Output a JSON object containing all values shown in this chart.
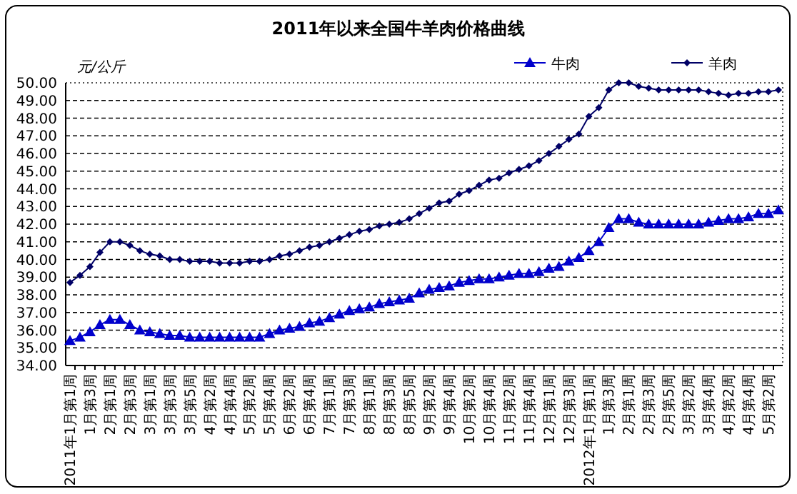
{
  "chart_data": {
    "type": "line",
    "title": "2011年以来全国牛羊肉价格曲线",
    "ylabel": "元/公斤",
    "categories": [
      "2011年1月第1周",
      null,
      "1月第3周",
      null,
      "2月第1周",
      null,
      "2月第3周",
      null,
      "3月第1周",
      null,
      "3月第3周",
      null,
      "3月第5周",
      null,
      "4月第2周",
      null,
      "4月第4周",
      null,
      "5月第2周",
      null,
      "5月第4周",
      null,
      "6月第2周",
      null,
      "6月第4周",
      null,
      "7月第1周",
      null,
      "7月第3周",
      null,
      "8月第1周",
      null,
      "8月第3周",
      null,
      "8月第5周",
      null,
      "9月第2周",
      null,
      "9月第4周",
      null,
      "10月第2周",
      null,
      "10月第4周",
      null,
      "11月第2周",
      null,
      "11月第4周",
      null,
      "12月第1周",
      null,
      "12月第3周",
      null,
      "2012年1月第1周",
      null,
      "1月第3周",
      null,
      "2月第1周",
      null,
      "2月第3周",
      null,
      "2月第5周",
      null,
      "3月第2周",
      null,
      "3月第4周",
      null,
      "4月第2周",
      null,
      "4月第4周",
      null,
      "5月第2周",
      null
    ],
    "series": [
      {
        "name": "牛肉",
        "color": "#0000cc",
        "marker": "triangle",
        "values": [
          35.4,
          35.6,
          35.9,
          36.3,
          36.6,
          36.6,
          36.3,
          36.0,
          35.9,
          35.8,
          35.7,
          35.7,
          35.6,
          35.6,
          35.6,
          35.6,
          35.6,
          35.6,
          35.6,
          35.6,
          35.8,
          36.0,
          36.1,
          36.2,
          36.4,
          36.5,
          36.7,
          36.9,
          37.1,
          37.2,
          37.3,
          37.5,
          37.6,
          37.7,
          37.8,
          38.1,
          38.3,
          38.4,
          38.5,
          38.7,
          38.8,
          38.9,
          38.9,
          39.0,
          39.1,
          39.2,
          39.2,
          39.3,
          39.5,
          39.6,
          39.9,
          40.1,
          40.5,
          41.0,
          41.8,
          42.3,
          42.3,
          42.1,
          42.0,
          42.0,
          42.0,
          42.0,
          42.0,
          42.0,
          42.1,
          42.2,
          42.3,
          42.3,
          42.4,
          42.6,
          42.6,
          42.8
        ]
      },
      {
        "name": "羊肉",
        "color": "#000066",
        "marker": "diamond",
        "values": [
          38.7,
          39.1,
          39.6,
          40.4,
          41.0,
          41.0,
          40.8,
          40.5,
          40.3,
          40.2,
          40.0,
          40.0,
          39.9,
          39.9,
          39.9,
          39.8,
          39.8,
          39.8,
          39.9,
          39.9,
          40.0,
          40.2,
          40.3,
          40.5,
          40.7,
          40.8,
          41.0,
          41.2,
          41.4,
          41.6,
          41.7,
          41.9,
          42.0,
          42.1,
          42.3,
          42.6,
          42.9,
          43.2,
          43.3,
          43.7,
          43.9,
          44.2,
          44.5,
          44.6,
          44.9,
          45.1,
          45.3,
          45.6,
          46.0,
          46.4,
          46.8,
          47.1,
          48.1,
          48.6,
          49.6,
          50.0,
          50.0,
          49.8,
          49.7,
          49.6,
          49.6,
          49.6,
          49.6,
          49.6,
          49.5,
          49.4,
          49.3,
          49.4,
          49.4,
          49.5,
          49.5,
          49.6
        ]
      }
    ],
    "ylim": [
      34,
      50
    ],
    "yticks": [
      {
        "value": 34,
        "label": "34.00"
      },
      {
        "value": 35,
        "label": "35.00"
      },
      {
        "value": 36,
        "label": "36.00"
      },
      {
        "value": 37,
        "label": "37.00"
      },
      {
        "value": 38,
        "label": "38.00"
      },
      {
        "value": 39,
        "label": "39.00"
      },
      {
        "value": 40,
        "label": "40.00"
      },
      {
        "value": 41,
        "label": "41.00"
      },
      {
        "value": 42,
        "label": "42.00"
      },
      {
        "value": 43,
        "label": "43.00"
      },
      {
        "value": 44,
        "label": "44.00"
      },
      {
        "value": 45,
        "label": "45.00"
      },
      {
        "value": 46,
        "label": "46.00"
      },
      {
        "value": 47,
        "label": "47.00"
      },
      {
        "value": 48,
        "label": "48.00"
      },
      {
        "value": 49,
        "label": "49.00"
      },
      {
        "value": 50,
        "label": "50.00"
      }
    ],
    "grid": "y",
    "legend": "top right"
  }
}
